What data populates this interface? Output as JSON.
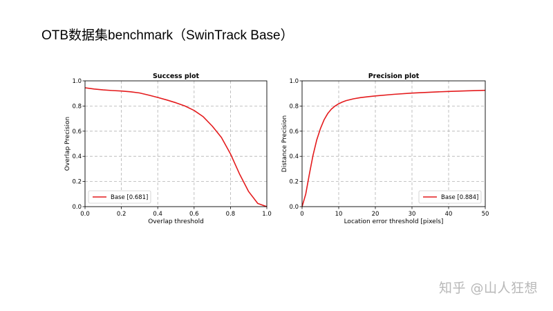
{
  "slide": {
    "title": "OTB数据集benchmark（SwinTrack Base）"
  },
  "watermark": "知乎 @山人狂想",
  "colors": {
    "series": "#e41a1c",
    "grid": "#b0b0b0",
    "axis": "#000000"
  },
  "chart_data": [
    {
      "type": "line",
      "title": "Success plot",
      "xlabel": "Overlap threshold",
      "ylabel": "Overlap Precision",
      "xlim": [
        0,
        1
      ],
      "ylim": [
        0,
        1
      ],
      "xticks": [
        "0.0",
        "0.2",
        "0.4",
        "0.6",
        "0.8",
        "1.0"
      ],
      "yticks": [
        "0.0",
        "0.2",
        "0.4",
        "0.6",
        "0.8",
        "1.0"
      ],
      "grid": true,
      "legend_position": "bottom-left",
      "series": [
        {
          "name": "Base [0.681]",
          "x": [
            0.0,
            0.05,
            0.1,
            0.15,
            0.2,
            0.25,
            0.3,
            0.35,
            0.4,
            0.45,
            0.5,
            0.55,
            0.6,
            0.65,
            0.7,
            0.75,
            0.8,
            0.85,
            0.9,
            0.95,
            1.0
          ],
          "y": [
            0.945,
            0.935,
            0.928,
            0.923,
            0.919,
            0.913,
            0.904,
            0.887,
            0.868,
            0.848,
            0.826,
            0.8,
            0.765,
            0.715,
            0.64,
            0.55,
            0.42,
            0.26,
            0.12,
            0.025,
            0.0
          ]
        }
      ]
    },
    {
      "type": "line",
      "title": "Precision plot",
      "xlabel": "Location error threshold [pixels]",
      "ylabel": "Distance Precision",
      "xlim": [
        0,
        50
      ],
      "ylim": [
        0,
        1
      ],
      "xticks": [
        "0",
        "10",
        "20",
        "30",
        "40",
        "50"
      ],
      "yticks": [
        "0.0",
        "0.2",
        "0.4",
        "0.6",
        "0.8",
        "1.0"
      ],
      "grid": true,
      "legend_position": "bottom-right",
      "series": [
        {
          "name": "Base [0.884]",
          "x": [
            0,
            1,
            2,
            3,
            4,
            5,
            6,
            7,
            8,
            9,
            10,
            11,
            12,
            14,
            16,
            18,
            20,
            25,
            30,
            35,
            40,
            45,
            50
          ],
          "y": [
            0.0,
            0.1,
            0.26,
            0.41,
            0.53,
            0.62,
            0.69,
            0.74,
            0.775,
            0.8,
            0.818,
            0.832,
            0.843,
            0.857,
            0.867,
            0.874,
            0.88,
            0.893,
            0.903,
            0.91,
            0.916,
            0.921,
            0.925
          ]
        }
      ]
    }
  ]
}
